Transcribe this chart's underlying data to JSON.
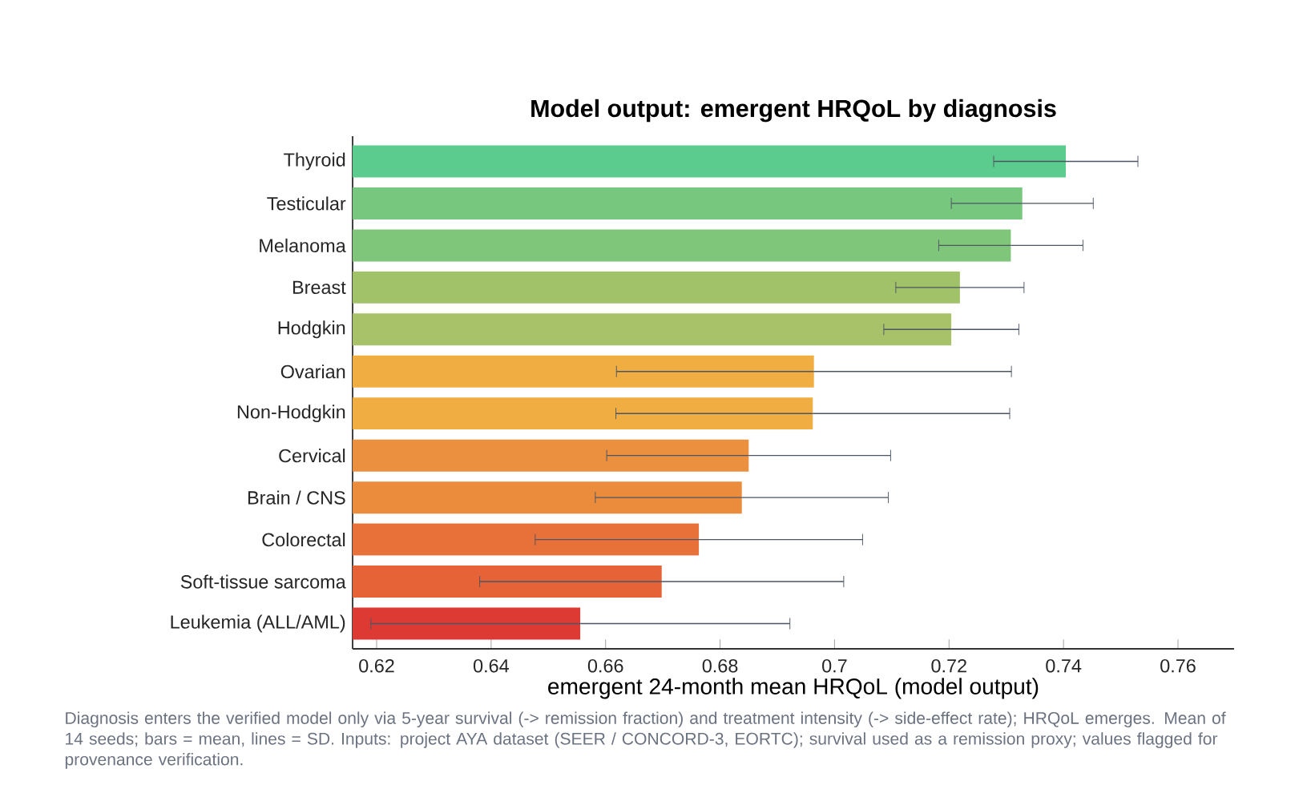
{
  "chart_data": {
    "type": "bar",
    "orientation": "horizontal",
    "title": "Model output: emergent HRQoL by diagnosis",
    "xlabel": "emergent 24-month mean HRQoL (model output)",
    "annotations": [
      "Diagnosis enters the verified model only via 5-year survival (-> remission fraction) and treatment intensity (-> side-effect rate); HRQoL emerges.  Mean of 14 seeds; bars = mean, lines = SD.  Inputs: project AYA dataset (SEER / CONCORD-3, EORTC); survival used as a remission proxy; values flagged for provenance verification."
    ],
    "categories": [
      "Thyroid",
      "Testicular",
      "Melanoma",
      "Breast",
      "Hodgkin",
      "Ovarian",
      "Non-Hodgkin",
      "Cervical",
      "Brain / CNS",
      "Colorectal",
      "Soft-tissue sarcoma",
      "Leukemia (ALL/AML)"
    ],
    "values": [
      0.7404,
      0.7328,
      0.7308,
      0.7219,
      0.7204,
      0.6964,
      0.6962,
      0.685,
      0.6838,
      0.6763,
      0.6698,
      0.6556
    ],
    "errors": [
      0.0126,
      0.0124,
      0.0126,
      0.0112,
      0.0118,
      0.0345,
      0.0344,
      0.0248,
      0.0256,
      0.0286,
      0.0318,
      0.0366
    ],
    "colors": [
      "#5ccc8e",
      "#78c77e",
      "#80c67a",
      "#a2c269",
      "#a8c26a",
      "#f0ae42",
      "#f0ae42",
      "#eb903e",
      "#eb8c3d",
      "#e8713a",
      "#e56336",
      "#dd3a34"
    ],
    "xlim": [
      0.6158,
      0.7698
    ],
    "xticks": [
      0.62,
      0.64,
      0.66,
      0.68,
      0.7,
      0.72,
      0.74,
      0.76
    ]
  }
}
